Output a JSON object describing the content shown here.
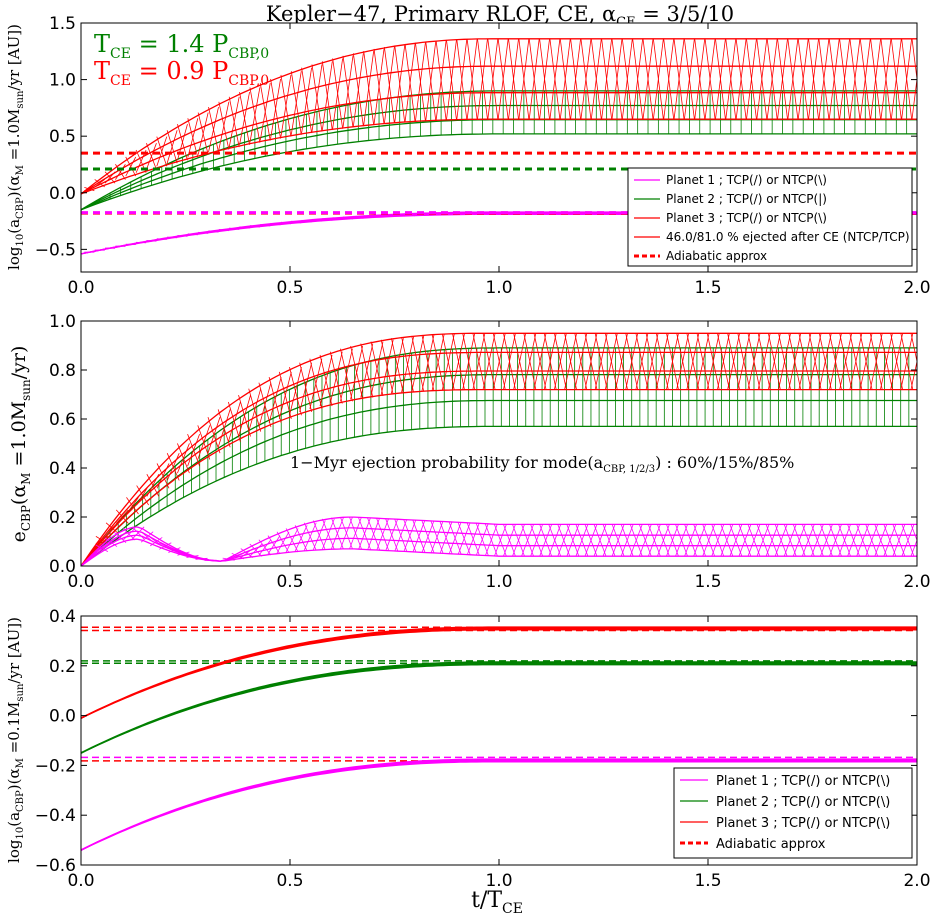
{
  "title": "Kepler−47, Primary RLOF, CE, α",
  "title_sub": "CE",
  "title_tail": " = 3/5/10",
  "colors": {
    "planet1": "#ff00ff",
    "planet2": "#008000",
    "planet3": "#ff0000",
    "adiabatic": "#ff0000"
  },
  "top_annotation": {
    "green_line": {
      "prefix": "T",
      "sub1": "CE",
      "mid": " = 1.4 P",
      "sub2": "CBP,0"
    },
    "red_line": {
      "prefix": "T",
      "sub1": "CE",
      "mid": " = 0.9 P",
      "sub2": "CBP,0"
    }
  },
  "xlabel": {
    "main": "t/T",
    "sub": "CE"
  },
  "middle_annotation": "1−Myr ejection probability for mode(a",
  "middle_annotation_sub": "CBP, 1/2/3",
  "middle_annotation_tail": ") : 60%/15%/85%",
  "chart_data": [
    {
      "type": "line",
      "ylabel": "log10(aCBP)(αM = 1.0Msun/yr [AU])",
      "xlim": [
        0.0,
        2.0
      ],
      "ylim": [
        -0.7,
        1.5
      ],
      "x_ticks": [
        "0.0",
        "0.5",
        "1.0",
        "1.5",
        "2.0"
      ],
      "y_ticks": [
        "−0.5",
        "0.0",
        "0.5",
        "1.0",
        "1.5"
      ],
      "y_tick_values": [
        -0.5,
        0.0,
        0.5,
        1.0,
        1.5
      ],
      "series": [
        {
          "name": "Planet 1 ; TCP(/) or NTCP(\\)",
          "color": "#ff00ff",
          "start": -0.54,
          "end_low": -0.19,
          "end_high": -0.17,
          "t_sat": 1.0,
          "hatch": "x"
        },
        {
          "name": "Planet 2 ; TCP(/) or NTCP(|)",
          "color": "#008000",
          "start": -0.15,
          "end_low": 0.52,
          "end_high": 0.9,
          "t_sat": 1.0,
          "hatch": "|"
        },
        {
          "name": "Planet 3 ; TCP(/) or NTCP(\\)",
          "color": "#ff0000",
          "start": -0.01,
          "end_low": 0.65,
          "end_high": 1.36,
          "t_sat": 0.98,
          "hatch": "x"
        }
      ],
      "adiabatic": [
        {
          "color": "#ff0000",
          "value": 0.35
        },
        {
          "color": "#008000",
          "value": 0.21
        },
        {
          "color": "#ff0000",
          "value": -0.18
        },
        {
          "color": "#ff00ff",
          "value": -0.175
        }
      ],
      "legend": [
        {
          "label": "Planet 1 ; TCP(/) or NTCP(\\)",
          "color": "#ff00ff",
          "style": "solid"
        },
        {
          "label": "Planet 2 ; TCP(/) or NTCP(|)",
          "color": "#008000",
          "style": "solid"
        },
        {
          "label": "Planet 3 ; TCP(/) or NTCP(\\)",
          "color": "#ff0000",
          "style": "solid"
        },
        {
          "label": "46.0/81.0 % ejected after CE (NTCP/TCP)",
          "color": "#ff0000",
          "style": "solid"
        },
        {
          "label": "Adiabatic approx",
          "color": "#ff0000",
          "style": "dashed"
        }
      ],
      "legend_position": "lower-right"
    },
    {
      "type": "line",
      "ylabel": "eCBP(αM = 1.0Msun/yr)",
      "xlim": [
        0.0,
        2.0
      ],
      "ylim": [
        0.0,
        1.0
      ],
      "x_ticks": [
        "0.0",
        "0.5",
        "1.0",
        "1.5",
        "2.0"
      ],
      "y_ticks": [
        "0.0",
        "0.2",
        "0.4",
        "0.6",
        "0.8",
        "1.0"
      ],
      "y_tick_values": [
        0.0,
        0.2,
        0.4,
        0.6,
        0.8,
        1.0
      ],
      "series": [
        {
          "name": "Planet 1",
          "color": "#ff00ff",
          "bump_peak": 0.16,
          "min_at": 0.34,
          "end_low": 0.04,
          "end_high": 0.17
        },
        {
          "name": "Planet 2",
          "color": "#008000",
          "end_low": 0.57,
          "end_high": 0.89,
          "t_sat": 1.0
        },
        {
          "name": "Planet 3",
          "color": "#ff0000",
          "end_low": 0.72,
          "end_high": 0.95,
          "t_sat": 0.98
        }
      ]
    },
    {
      "type": "line",
      "ylabel": "log10(aCBP)(αM = 0.1Msun/yr [AU])",
      "xlim": [
        0.0,
        2.0
      ],
      "ylim": [
        -0.6,
        0.4
      ],
      "x_ticks": [
        "0.0",
        "0.5",
        "1.0",
        "1.5",
        "2.0"
      ],
      "y_ticks": [
        "−0.6",
        "−0.4",
        "−0.2",
        "0.0",
        "0.2",
        "0.4"
      ],
      "y_tick_values": [
        -0.6,
        -0.4,
        -0.2,
        0.0,
        0.2,
        0.4
      ],
      "series": [
        {
          "name": "Planet 1 ; TCP(/) or NTCP(\\)",
          "color": "#ff00ff",
          "start": -0.54,
          "end_low": -0.185,
          "end_high": -0.175
        },
        {
          "name": "Planet 2 ; TCP(/) or NTCP(\\)",
          "color": "#008000",
          "start": -0.15,
          "end_low": 0.205,
          "end_high": 0.215
        },
        {
          "name": "Planet 3 ; TCP(/) or NTCP(\\)",
          "color": "#ff0000",
          "start": -0.01,
          "end_low": 0.345,
          "end_high": 0.355
        }
      ],
      "adiabatic": [
        {
          "color": "#ff0000",
          "value": 0.355
        },
        {
          "color": "#ff0000",
          "value": 0.342
        },
        {
          "color": "#008000",
          "value": 0.22
        },
        {
          "color": "#008000",
          "value": 0.21
        },
        {
          "color": "#ff00ff",
          "value": -0.168
        },
        {
          "color": "#ff0000",
          "value": -0.182
        }
      ],
      "legend": [
        {
          "label": "Planet 1 ; TCP(/) or NTCP(\\)",
          "color": "#ff00ff",
          "style": "solid"
        },
        {
          "label": "Planet 2 ; TCP(/) or NTCP(\\)",
          "color": "#008000",
          "style": "solid"
        },
        {
          "label": "Planet 3 ; TCP(/) or NTCP(\\)",
          "color": "#ff0000",
          "style": "solid"
        },
        {
          "label": "Adiabatic approx",
          "color": "#ff0000",
          "style": "dashed"
        }
      ],
      "legend_position": "lower-right"
    }
  ]
}
